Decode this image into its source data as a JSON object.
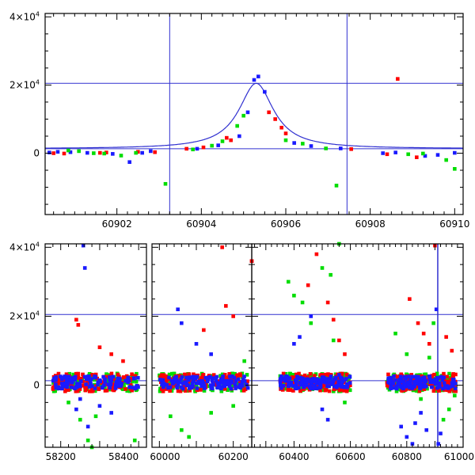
{
  "colors": {
    "blue": "#1a1aff",
    "red": "#ff0000",
    "green": "#00dd00",
    "line": "#3030d0"
  },
  "chart_data": [
    {
      "type": "scatter",
      "title": "",
      "xlabel": "",
      "ylabel": "",
      "xlim": [
        60900.3,
        60910.2
      ],
      "ylim": [
        -18000,
        41000
      ],
      "xticks": [
        60902,
        60904,
        60906,
        60908,
        60910
      ],
      "yticks": [
        {
          "value": 0,
          "label": "0"
        },
        {
          "value": 20000,
          "label": "2×10",
          "exp": "4"
        },
        {
          "value": 40000,
          "label": "4×10",
          "exp": "4"
        }
      ],
      "hlines": [
        20500,
        1300
      ],
      "vlines": [
        60903.25,
        60907.45
      ],
      "model_curve": {
        "peak_x": 60905.3,
        "peak_y": 20500,
        "baseline": 1300,
        "width": 0.5
      },
      "series": [
        {
          "color": "blue",
          "points": [
            [
              60900.4,
              200
            ],
            [
              60900.6,
              400
            ],
            [
              60900.9,
              300
            ],
            [
              60901.3,
              100
            ],
            [
              60901.9,
              -200
            ],
            [
              60902.3,
              -2600
            ],
            [
              60902.6,
              100
            ],
            [
              60902.8,
              600
            ],
            [
              60903.9,
              1300
            ],
            [
              60904.4,
              2300
            ],
            [
              60904.9,
              5000
            ],
            [
              60905.1,
              12000
            ],
            [
              60905.25,
              21500
            ],
            [
              60905.35,
              22500
            ],
            [
              60905.5,
              18000
            ],
            [
              60906.2,
              3000
            ],
            [
              60906.6,
              2100
            ],
            [
              60907.3,
              1400
            ],
            [
              60908.3,
              0
            ],
            [
              60908.6,
              200
            ],
            [
              60909.3,
              -800
            ],
            [
              60909.6,
              -500
            ],
            [
              60910.0,
              100
            ]
          ]
        },
        {
          "color": "red",
          "points": [
            [
              60900.5,
              0
            ],
            [
              60900.75,
              -100
            ],
            [
              60901.6,
              100
            ],
            [
              60901.75,
              200
            ],
            [
              60902.5,
              400
            ],
            [
              60902.9,
              300
            ],
            [
              60903.65,
              1300
            ],
            [
              60904.05,
              1700
            ],
            [
              60904.6,
              4500
            ],
            [
              60904.7,
              3800
            ],
            [
              60905.6,
              12000
            ],
            [
              60905.75,
              10000
            ],
            [
              60905.9,
              7500
            ],
            [
              60906.0,
              5800
            ],
            [
              60907.55,
              1200
            ],
            [
              60908.4,
              -300
            ],
            [
              60908.65,
              21800
            ],
            [
              60909.1,
              -1200
            ]
          ]
        },
        {
          "color": "green",
          "points": [
            [
              60900.2,
              -100
            ],
            [
              60900.85,
              800
            ],
            [
              60901.1,
              600
            ],
            [
              60901.45,
              0
            ],
            [
              60901.7,
              -100
            ],
            [
              60902.1,
              -700
            ],
            [
              60902.45,
              100
            ],
            [
              60903.15,
              -9000
            ],
            [
              60903.8,
              1100
            ],
            [
              60904.25,
              2200
            ],
            [
              60904.5,
              3500
            ],
            [
              60904.85,
              8000
            ],
            [
              60905.0,
              11000
            ],
            [
              60906.0,
              3800
            ],
            [
              60906.4,
              2800
            ],
            [
              60906.95,
              1400
            ],
            [
              60907.2,
              -9500
            ],
            [
              60908.9,
              -300
            ],
            [
              60909.25,
              -100
            ],
            [
              60909.8,
              -2000
            ],
            [
              60910.0,
              -4600
            ]
          ]
        }
      ]
    },
    {
      "type": "scatter",
      "title": "",
      "xlabel": "",
      "ylabel": "",
      "segments": [
        {
          "xlim": [
            58160,
            58420
          ],
          "xticks": [
            58200,
            58400
          ]
        },
        {
          "xlim": [
            59980,
            60250
          ],
          "xticks": [
            60000,
            60200
          ]
        },
        {
          "xlim": [
            60250,
            61000
          ],
          "xticks": [
            60400,
            60600,
            60800,
            61000
          ]
        }
      ],
      "ylim": [
        -18000,
        41000
      ],
      "yticks": [
        {
          "value": 0,
          "label": "0"
        },
        {
          "value": 20000,
          "label": "2×10",
          "exp": "4"
        },
        {
          "value": 40000,
          "label": "4×10",
          "exp": "4"
        }
      ],
      "hlines": [
        20500,
        1300
      ],
      "vlines": [
        60910
      ],
      "seasons": [
        [
          58180,
          58400
        ],
        [
          60000,
          60240
        ],
        [
          60350,
          60600
        ],
        [
          60730,
          60975
        ]
      ],
      "series": [
        {
          "color": "blue",
          "points": [
            [
              58258,
              40500
            ],
            [
              58262,
              34000
            ],
            [
              58240,
              -7000
            ],
            [
              58250,
              -4000
            ],
            [
              58330,
              -8000
            ],
            [
              58300,
              -6000
            ],
            [
              58270,
              -12000
            ],
            [
              60050,
              22000
            ],
            [
              60060,
              18000
            ],
            [
              60100,
              12000
            ],
            [
              60140,
              9000
            ],
            [
              60400,
              12000
            ],
            [
              60420,
              14000
            ],
            [
              60460,
              20000
            ],
            [
              60500,
              -7000
            ],
            [
              60520,
              -10000
            ],
            [
              60560,
              3000
            ],
            [
              60780,
              -12000
            ],
            [
              60800,
              -15000
            ],
            [
              60820,
              -17000
            ],
            [
              60830,
              -11000
            ],
            [
              60850,
              -8000
            ],
            [
              60870,
              -13000
            ],
            [
              60905,
              22000
            ],
            [
              60912,
              -17000
            ],
            [
              60920,
              -14000
            ]
          ]
        },
        {
          "color": "red",
          "points": [
            [
              58240,
              19000
            ],
            [
              58245,
              17500
            ],
            [
              58300,
              11000
            ],
            [
              58330,
              9000
            ],
            [
              58360,
              7000
            ],
            [
              60170,
              40000
            ],
            [
              60180,
              23000
            ],
            [
              60200,
              20000
            ],
            [
              60250,
              36000
            ],
            [
              60120,
              16000
            ],
            [
              60450,
              29000
            ],
            [
              60480,
              38000
            ],
            [
              60520,
              24000
            ],
            [
              60540,
              19000
            ],
            [
              60560,
              13000
            ],
            [
              60580,
              9000
            ],
            [
              60810,
              25000
            ],
            [
              60840,
              18000
            ],
            [
              60860,
              15000
            ],
            [
              60880,
              12000
            ],
            [
              60900,
              40500
            ],
            [
              60940,
              14000
            ],
            [
              60960,
              10000
            ]
          ]
        },
        {
          "color": "green",
          "points": [
            [
              58220,
              -5000
            ],
            [
              58250,
              -10000
            ],
            [
              58270,
              -16000
            ],
            [
              58280,
              -18000
            ],
            [
              58290,
              -9000
            ],
            [
              58390,
              -16000
            ],
            [
              60030,
              -9000
            ],
            [
              60060,
              -13000
            ],
            [
              60080,
              -15000
            ],
            [
              60140,
              -8000
            ],
            [
              60200,
              -6000
            ],
            [
              60230,
              7000
            ],
            [
              60380,
              30000
            ],
            [
              60400,
              26000
            ],
            [
              60430,
              24000
            ],
            [
              60460,
              18000
            ],
            [
              60500,
              34000
            ],
            [
              60530,
              32000
            ],
            [
              60560,
              41000
            ],
            [
              60540,
              13000
            ],
            [
              60580,
              -5000
            ],
            [
              60760,
              15000
            ],
            [
              60800,
              9000
            ],
            [
              60850,
              -4000
            ],
            [
              60880,
              8000
            ],
            [
              60895,
              18000
            ],
            [
              60930,
              -10000
            ],
            [
              60950,
              -7000
            ],
            [
              60970,
              -3000
            ]
          ]
        }
      ]
    }
  ]
}
